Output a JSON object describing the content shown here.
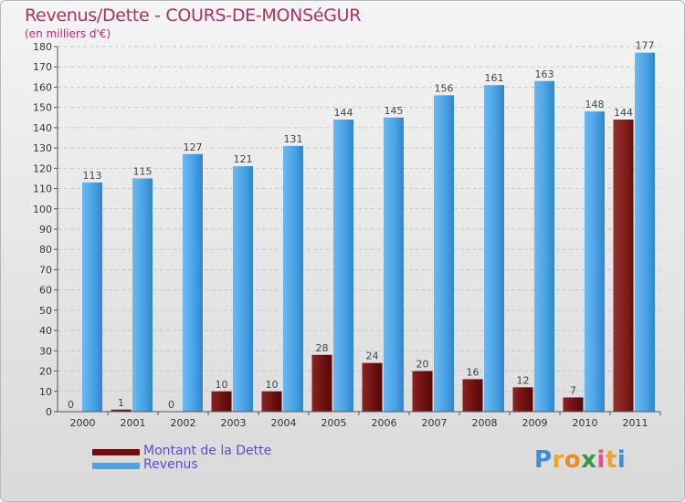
{
  "chart_data": {
    "type": "bar",
    "title": "Revenus/Dette - COURS-DE-MONSéGUR",
    "subtitle": "(en milliers d'€)",
    "xlabel": "",
    "ylabel": "",
    "categories": [
      "2000",
      "2001",
      "2002",
      "2003",
      "2004",
      "2005",
      "2006",
      "2007",
      "2008",
      "2009",
      "2010",
      "2011"
    ],
    "ylim": [
      0,
      180
    ],
    "yticks": [
      0,
      10,
      20,
      30,
      40,
      50,
      60,
      70,
      80,
      90,
      100,
      110,
      120,
      130,
      140,
      150,
      160,
      170,
      180
    ],
    "grid": true,
    "legend_position": "bottom-left",
    "series": [
      {
        "name": "Montant de la Dette",
        "color": "#6e0f0f",
        "values": [
          0,
          1,
          0,
          10,
          10,
          28,
          24,
          20,
          16,
          12,
          7,
          144
        ]
      },
      {
        "name": "Revenus",
        "color": "#4aa3e6",
        "values": [
          113,
          115,
          127,
          121,
          131,
          144,
          145,
          156,
          161,
          163,
          148,
          177
        ]
      }
    ]
  },
  "logo": {
    "letters": [
      "P",
      "r",
      "o",
      "x",
      "i",
      "t",
      "i"
    ],
    "colors": [
      "#3b8fd9",
      "#f2a32b",
      "#f28a1e",
      "#2f9c3c",
      "#e94c8a",
      "#f2a32b",
      "#3b8fd9"
    ]
  }
}
